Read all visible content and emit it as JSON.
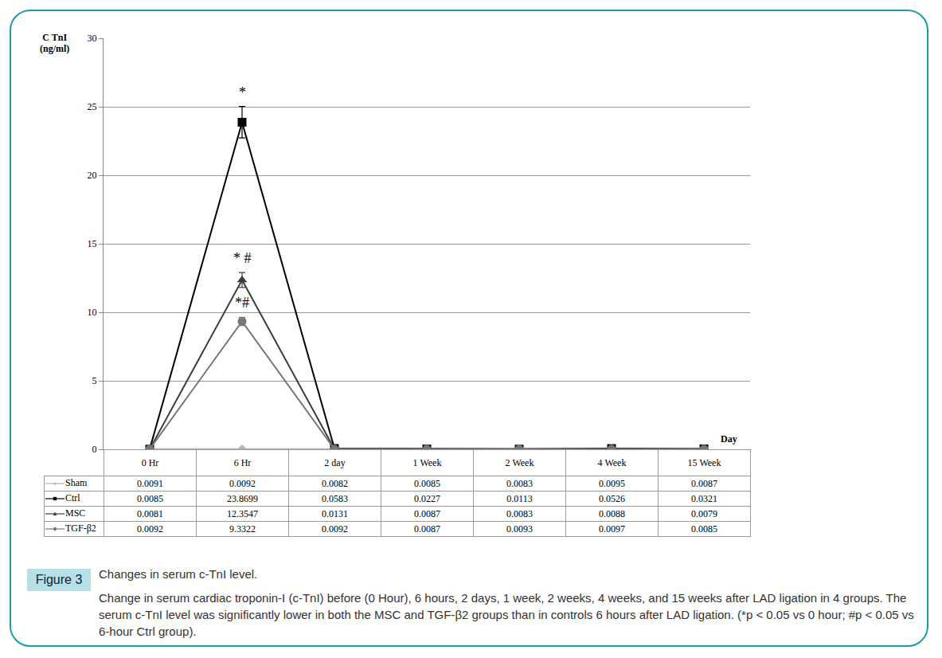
{
  "chart_data": {
    "type": "line",
    "figure_label": "Figure 3",
    "title": "Changes in serum c-TnI level.",
    "caption": "Change in serum cardiac troponin-I (c-TnI) before (0 Hour), 6 hours, 2 days, 1 week, 2 weeks, 4 weeks, and 15 weeks after LAD ligation in 4 groups. The serum c-TnI level was significantly lower in both the MSC and TGF-β2 groups than in controls 6 hours after LAD ligation.  (*p < 0.05 vs 0 hour; #p < 0.05 vs 6-hour Ctrl group).",
    "y_label": "C TnI\n(ng/ml)",
    "x_label": "Day",
    "categories": [
      "0 Hr",
      "6 Hr",
      "2 day",
      "1 Week",
      "2 Week",
      "4 Week",
      "15 Week"
    ],
    "ylim": [
      0,
      30
    ],
    "yticks": [
      0,
      5,
      10,
      15,
      20,
      25,
      30
    ],
    "grid": true,
    "series": [
      {
        "name": "Sham",
        "color": "#b4b4b4",
        "marker": "diamond",
        "values": [
          0.0091,
          0.0092,
          0.0082,
          0.0085,
          0.0083,
          0.0095,
          0.0087
        ]
      },
      {
        "name": "Ctrl",
        "color": "#000000",
        "marker": "square",
        "values": [
          0.0085,
          23.8699,
          0.0583,
          0.0227,
          0.0113,
          0.0526,
          0.0321
        ],
        "errors": [
          null,
          1.15,
          null,
          null,
          null,
          null,
          null
        ]
      },
      {
        "name": "MSC",
        "color": "#3c3c3c",
        "marker": "triangle-up",
        "values": [
          0.0081,
          12.3547,
          0.0131,
          0.0087,
          0.0083,
          0.0088,
          0.0079
        ],
        "errors": [
          null,
          0.55,
          null,
          null,
          null,
          null,
          null
        ]
      },
      {
        "name": "TGF-β2",
        "color": "#777777",
        "marker": "circle",
        "values": [
          0.0092,
          9.3322,
          0.0092,
          0.0087,
          0.0093,
          0.0097,
          0.0085
        ],
        "errors": [
          null,
          0.3,
          null,
          null,
          null,
          null,
          null
        ]
      }
    ],
    "annotations": [
      {
        "text": "*",
        "series": "Ctrl",
        "category": "6 Hr"
      },
      {
        "text": "* #",
        "series": "MSC",
        "category": "6 Hr"
      },
      {
        "text": "*#",
        "series": "TGF-β2",
        "category": "6 Hr"
      }
    ]
  }
}
